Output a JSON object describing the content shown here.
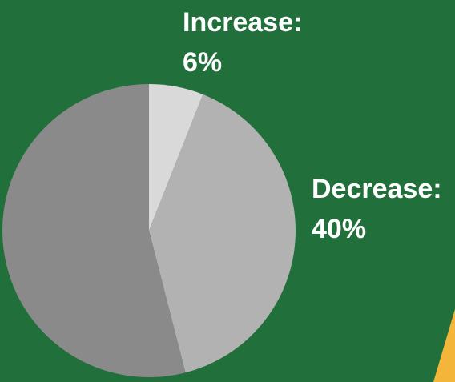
{
  "chart_data": {
    "type": "pie",
    "categories": [
      "Increase",
      "Decrease",
      ""
    ],
    "values": [
      6,
      40,
      54
    ],
    "value_unit": "%",
    "start_angle_deg": 0,
    "direction": "clockwise",
    "labels": [
      {
        "name": "Increase:",
        "value": "6%"
      },
      {
        "name": "Decrease:",
        "value": "40%"
      }
    ],
    "colors": [
      "#d9d9d9",
      "#b2b2b2",
      "#8a8a8a"
    ]
  },
  "colors": {
    "background": "#216f3b",
    "accent": "#f3b63a",
    "label_text": "#ffffff"
  }
}
